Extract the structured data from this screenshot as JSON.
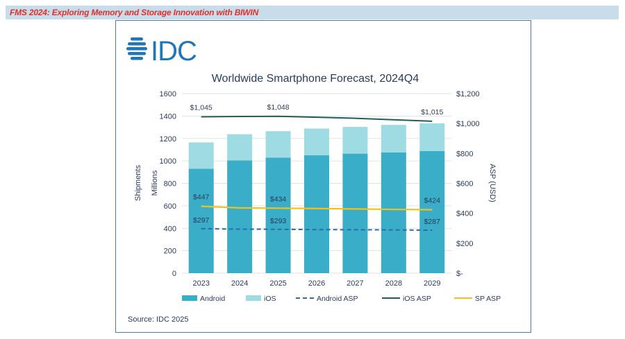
{
  "banner": {
    "title": "FMS 2024: Exploring Memory and Storage Innovation with BIWIN"
  },
  "logo": {
    "text": "IDC",
    "color": "#1f76b8"
  },
  "source": "Source: IDC 2025",
  "colors": {
    "android": "#3aaec8",
    "ios": "#9fdbe3",
    "android_asp": "#2b6da8",
    "ios_asp": "#1f5e5a",
    "sp_asp": "#f2c21b",
    "text": "#2a3b5c",
    "grid": "#d9d9d9"
  },
  "chart_data": {
    "type": "bar",
    "title": "Worldwide Smartphone Forecast, 2024Q4",
    "categories": [
      "2023",
      "2024",
      "2025",
      "2026",
      "2027",
      "2028",
      "2029"
    ],
    "ylabel": "Shipments",
    "ylabel2": "Millions",
    "y2label": "ASP (USD)",
    "ylim": [
      0,
      1600
    ],
    "y2lim": [
      0,
      1200
    ],
    "yticks": [
      "0",
      "200",
      "400",
      "600",
      "800",
      "1000",
      "1200",
      "1400",
      "1600"
    ],
    "y2ticks": [
      "$-",
      "$200",
      "$400",
      "$600",
      "$800",
      "$1,000",
      "$1,200"
    ],
    "grid": true,
    "legend_position": "bottom",
    "series": [
      {
        "name": "Android",
        "kind": "stacked-bar",
        "values": [
          930,
          1005,
          1030,
          1050,
          1065,
          1075,
          1088
        ]
      },
      {
        "name": "iOS",
        "kind": "stacked-bar",
        "values": [
          235,
          233,
          235,
          238,
          238,
          246,
          247
        ]
      },
      {
        "name": "Android ASP",
        "kind": "line-dashed",
        "axis": "right",
        "values": [
          297,
          294,
          293,
          291,
          290,
          289,
          287
        ]
      },
      {
        "name": "iOS ASP",
        "kind": "line",
        "axis": "right",
        "values": [
          1045,
          1047,
          1048,
          1042,
          1035,
          1025,
          1015
        ]
      },
      {
        "name": "SP ASP",
        "kind": "line",
        "axis": "right",
        "values": [
          447,
          436,
          434,
          432,
          429,
          426,
          424
        ]
      }
    ],
    "annotations": [
      {
        "series": "iOS ASP",
        "index": 0,
        "text": "$1,045"
      },
      {
        "series": "iOS ASP",
        "index": 2,
        "text": "$1,048"
      },
      {
        "series": "iOS ASP",
        "index": 6,
        "text": "$1,015"
      },
      {
        "series": "SP ASP",
        "index": 0,
        "text": "$447"
      },
      {
        "series": "SP ASP",
        "index": 2,
        "text": "$434"
      },
      {
        "series": "SP ASP",
        "index": 6,
        "text": "$424"
      },
      {
        "series": "Android ASP",
        "index": 0,
        "text": "$297"
      },
      {
        "series": "Android ASP",
        "index": 2,
        "text": "$293"
      },
      {
        "series": "Android ASP",
        "index": 6,
        "text": "$287"
      }
    ]
  }
}
